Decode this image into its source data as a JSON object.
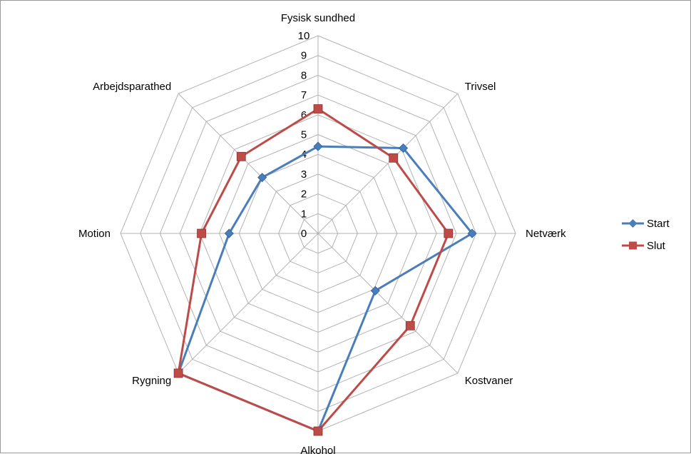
{
  "chart_data": {
    "type": "radar",
    "categories": [
      "Fysisk sundhed",
      "Trivsel",
      "Netværk",
      "Kostvaner",
      "Alkohol",
      "Rygning",
      "Motion",
      "Arbejdsparathed"
    ],
    "rlim": [
      0,
      10
    ],
    "ticks": [
      "0",
      "1",
      "2",
      "3",
      "4",
      "5",
      "6",
      "7",
      "8",
      "9",
      "10"
    ],
    "grid": true,
    "legend_position": "right",
    "series": [
      {
        "name": "Start",
        "color": "#4a7ebb",
        "marker": "diamond",
        "values": [
          4.4,
          6.1,
          7.8,
          4.1,
          10,
          10,
          4.5,
          4.0
        ]
      },
      {
        "name": "Slut",
        "color": "#be4b48",
        "marker": "square",
        "values": [
          6.3,
          5.4,
          6.6,
          6.6,
          10,
          10,
          5.9,
          5.5
        ]
      }
    ]
  }
}
